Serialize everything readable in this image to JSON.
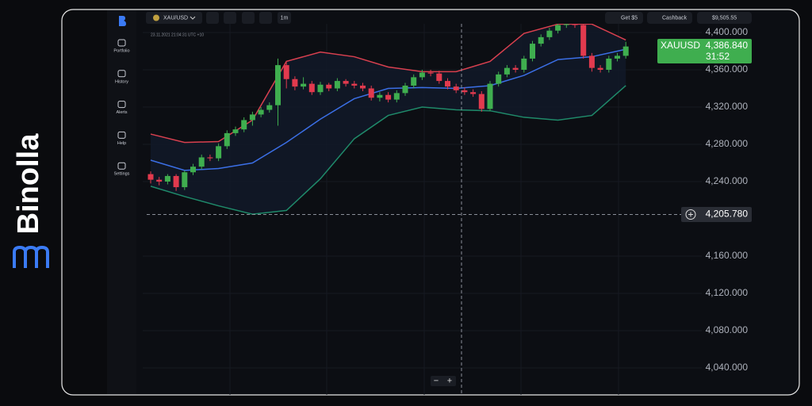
{
  "brand": "Binolla",
  "sidebar": [
    "Portfolio",
    "History",
    "Alerts",
    "Help",
    "Settings"
  ],
  "toolbar": {
    "pair": "XAU/USD",
    "interval": "1m",
    "bonus": "Get $5",
    "cashback": "Cashback",
    "balance": "$9,505.55"
  },
  "chart": {
    "timestamp": "23.11.2021 21:04:31 UTC +10",
    "symbol": "XAUUSD",
    "price_label": "4,386.840",
    "timer": "31:52",
    "crosshair_label": "4,205.780",
    "zoom": [
      "−",
      "+"
    ],
    "ylim": [
      4010,
      4410
    ],
    "yticks": [
      {
        "value": 4400,
        "label": "4,400.000"
      },
      {
        "value": 4360,
        "label": "4,360.000"
      },
      {
        "value": 4320,
        "label": "4,320.000"
      },
      {
        "value": 4280,
        "label": "4,280.000"
      },
      {
        "value": 4240,
        "label": "4,240.000"
      },
      {
        "value": 4160,
        "label": "4,160.000"
      },
      {
        "value": 4120,
        "label": "4,120.000"
      },
      {
        "value": 4080,
        "label": "4,080.000"
      },
      {
        "value": 4040,
        "label": "4,040.000"
      }
    ],
    "up_color": "#3fae4f",
    "down_color": "#e23a4e",
    "open": [
      4248,
      4242,
      4240,
      4246,
      4234,
      4250,
      4256,
      4266,
      4265,
      4278,
      4292,
      4296,
      4306,
      4312,
      4317,
      4322,
      4365,
      4350,
      4342,
      4345,
      4336,
      4344,
      4340,
      4348,
      4345,
      4343,
      4340,
      4330,
      4333,
      4328,
      4335,
      4343,
      4352,
      4357,
      4356,
      4348,
      4342,
      4338,
      4336,
      4334,
      4318,
      4345,
      4355,
      4362,
      4360,
      4372,
      4388,
      4395,
      4402,
      4408,
      4409,
      4408,
      4375,
      4362,
      4360,
      4372,
      4375
    ],
    "close": [
      4242,
      4240,
      4246,
      4234,
      4250,
      4256,
      4266,
      4265,
      4278,
      4292,
      4296,
      4306,
      4312,
      4317,
      4322,
      4365,
      4350,
      4342,
      4345,
      4336,
      4344,
      4340,
      4348,
      4345,
      4343,
      4340,
      4330,
      4333,
      4328,
      4335,
      4343,
      4352,
      4357,
      4356,
      4348,
      4342,
      4338,
      4336,
      4334,
      4318,
      4345,
      4355,
      4362,
      4360,
      4372,
      4388,
      4395,
      4402,
      4408,
      4409,
      4408,
      4375,
      4362,
      4360,
      4372,
      4375,
      4385
    ],
    "high": [
      4251,
      4245,
      4248,
      4248,
      4252,
      4259,
      4269,
      4269,
      4281,
      4295,
      4299,
      4309,
      4315,
      4320,
      4325,
      4372,
      4368,
      4353,
      4352,
      4348,
      4347,
      4346,
      4351,
      4350,
      4348,
      4346,
      4343,
      4336,
      4336,
      4338,
      4346,
      4355,
      4360,
      4360,
      4359,
      4351,
      4345,
      4341,
      4339,
      4337,
      4348,
      4358,
      4365,
      4365,
      4375,
      4391,
      4398,
      4405,
      4410,
      4410,
      4410,
      4410,
      4378,
      4365,
      4375,
      4378,
      4390
    ],
    "low": [
      4238,
      4236,
      4237,
      4230,
      4231,
      4247,
      4253,
      4262,
      4262,
      4275,
      4289,
      4293,
      4300,
      4309,
      4314,
      4300,
      4340,
      4338,
      4339,
      4333,
      4333,
      4337,
      4337,
      4342,
      4340,
      4337,
      4327,
      4326,
      4325,
      4325,
      4332,
      4340,
      4349,
      4353,
      4345,
      4339,
      4335,
      4333,
      4331,
      4315,
      4316,
      4342,
      4352,
      4357,
      4357,
      4369,
      4385,
      4392,
      4399,
      4405,
      4405,
      4372,
      4358,
      4357,
      4357,
      4369,
      4372
    ],
    "band_index": [
      0,
      4,
      8,
      12,
      16,
      20,
      24,
      28,
      32,
      36,
      40,
      44,
      48,
      52,
      56
    ],
    "bands": [
      {
        "color": "#d9404f",
        "values": [
          4291,
          4282,
          4283,
          4306,
          4369,
          4379,
          4374,
          4363,
          4358,
          4358,
          4369,
          4399,
          4409,
          4409,
          4392
        ]
      },
      {
        "color": "#3b6fe6",
        "values": [
          4263,
          4252,
          4254,
          4260,
          4282,
          4307,
          4329,
          4340,
          4341,
          4340,
          4343,
          4354,
          4371,
          4374,
          4382
        ]
      },
      {
        "color": "#1f8a6a",
        "values": [
          4235,
          4224,
          4214,
          4205,
          4209,
          4243,
          4286,
          4311,
          4320,
          4317,
          4316,
          4309,
          4306,
          4311,
          4343
        ]
      }
    ]
  }
}
